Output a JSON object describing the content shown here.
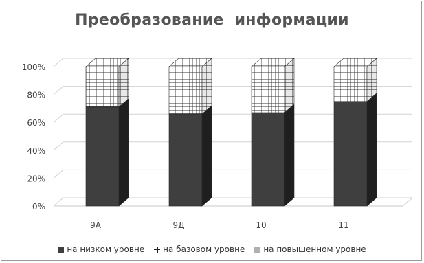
{
  "chart_data": {
    "type": "bar",
    "stacked": true,
    "three_d": true,
    "title": "Преобразование  информации",
    "categories": [
      "9А",
      "9Д",
      "10",
      "11"
    ],
    "yticks": [
      "0%",
      "20%",
      "40%",
      "60%",
      "80%",
      "100%"
    ],
    "ylim": [
      0,
      100
    ],
    "grid": true,
    "legend_position": "bottom",
    "series": [
      {
        "name": "на низком уровне",
        "values": [
          71,
          66,
          67,
          75
        ],
        "color": "#3f3f3f"
      },
      {
        "name": "на базовом уровне",
        "values": [
          29,
          34,
          33,
          25
        ],
        "color": "#ffffff",
        "pattern": "grid"
      },
      {
        "name": "на повышенном уровне",
        "values": [
          0,
          0,
          0,
          0
        ],
        "color": "#b0b0b0"
      }
    ]
  }
}
